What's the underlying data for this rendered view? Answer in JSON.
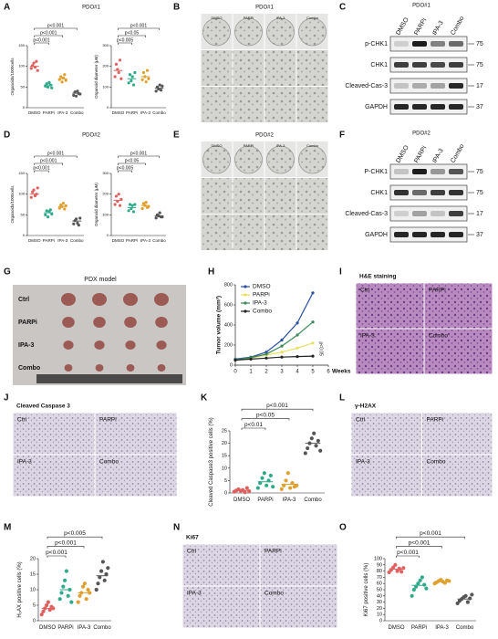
{
  "panel_letters": [
    "A",
    "B",
    "C",
    "D",
    "E",
    "F",
    "G",
    "H",
    "I",
    "J",
    "K",
    "L",
    "M",
    "N",
    "O"
  ],
  "panel_titles": {
    "A": "PDO#1",
    "D": "PDO#2"
  },
  "organoid_images": [
    {
      "title": "PDO#1",
      "columns": [
        "DMSO",
        "PARPi",
        "IPA-3",
        "Combo"
      ]
    },
    {
      "title": "PDO#2",
      "columns": [
        "DMSO",
        "PARPi",
        "IPA-3",
        "Combo"
      ]
    }
  ],
  "blots": [
    {
      "title": "PDO#1",
      "lanes": [
        "DMSO",
        "PARPi",
        "IPA-3",
        "Combo"
      ],
      "rows": [
        {
          "label": "p-CHK1",
          "mw": "75"
        },
        {
          "label": "CHK1",
          "mw": "75"
        },
        {
          "label": "Cleaved-Cas-3",
          "mw": "17"
        },
        {
          "label": "GAPDH",
          "mw": "37"
        }
      ]
    },
    {
      "title": "PDO#2",
      "lanes": [
        "DMSO",
        "PARPi",
        "IPA-3",
        "Combo"
      ],
      "rows": [
        {
          "label": "P-CHK1",
          "mw": "75"
        },
        {
          "label": "CHK1",
          "mw": "75"
        },
        {
          "label": "Cleaved-Cas-3",
          "mw": "17"
        },
        {
          "label": "GAPDH",
          "mw": "37"
        }
      ]
    }
  ],
  "pdx": {
    "title": "PDX model",
    "rows": [
      "Ctrl",
      "PARPi",
      "IPA-3",
      "Combo"
    ]
  },
  "stainings": [
    {
      "title": "H&E staining",
      "labels": [
        "Ctrl",
        "PARPi",
        "IPA-3",
        "Combo"
      ]
    },
    {
      "title": "Cleaved Caspase 3",
      "labels": [
        "Ctrl",
        "PARPi",
        "IPA-3",
        "Combo"
      ]
    },
    {
      "title": "γ-H2AX",
      "labels": [
        "Ctrl",
        "PARPi",
        "IPA-3",
        "Combo"
      ]
    },
    {
      "title": "Ki67",
      "labels": [
        "Ctrl",
        "PARPi",
        "IPA-3",
        "Combo"
      ]
    }
  ],
  "chart_data": [
    {
      "type": "dot",
      "ylabel": "Organoids/1000cells",
      "categories": [
        "DMSO",
        "PARPi",
        "IPA-3",
        "Combo"
      ],
      "colors": [
        "#e06060",
        "#2eaa8a",
        "#e0a030",
        "#555555"
      ],
      "values": [
        [
          95,
          102,
          108,
          98,
          112,
          90
        ],
        [
          52,
          58,
          50,
          61,
          55,
          48
        ],
        [
          68,
          75,
          62,
          72,
          80,
          66
        ],
        [
          30,
          38,
          28,
          40,
          34,
          33
        ]
      ],
      "means": [
        100,
        55,
        70,
        35
      ],
      "ylim": [
        0,
        150
      ],
      "yticks": [
        0,
        50,
        100,
        150
      ],
      "annotations": [
        "p<0.001",
        "p<0.001",
        "p<0.001"
      ]
    },
    {
      "type": "dot",
      "ylabel": "Organoid diameter (μM)",
      "categories": [
        "DMSO",
        "PARPi",
        "IPA-3",
        "Combo"
      ],
      "colors": [
        "#e06060",
        "#2eaa8a",
        "#e0a030",
        "#555555"
      ],
      "values": [
        [
          150,
          210,
          185,
          170,
          230,
          140
        ],
        [
          120,
          160,
          130,
          150,
          110,
          170
        ],
        [
          135,
          170,
          150,
          125,
          180,
          140
        ],
        [
          80,
          100,
          90,
          110,
          85,
          105
        ]
      ],
      "means": [
        180,
        140,
        150,
        95
      ],
      "ylim": [
        0,
        300
      ],
      "yticks": [
        0,
        100,
        200,
        300
      ],
      "annotations": [
        "p<0.005",
        "p<0.05",
        "p<0.001"
      ]
    },
    {
      "type": "dot",
      "ylabel": "Organoids/1000cells",
      "categories": [
        "DMSO",
        "PARPi",
        "IPA-3",
        "Combo"
      ],
      "colors": [
        "#e06060",
        "#2eaa8a",
        "#e0a030",
        "#555555"
      ],
      "values": [
        [
          92,
          105,
          110,
          96,
          100,
          115
        ],
        [
          50,
          60,
          45,
          58,
          62,
          52
        ],
        [
          66,
          74,
          70,
          78,
          64,
          72
        ],
        [
          28,
          36,
          40,
          30,
          25,
          42
        ]
      ],
      "means": [
        100,
        55,
        70,
        35
      ],
      "ylim": [
        0,
        150
      ],
      "yticks": [
        0,
        50,
        100,
        150
      ],
      "annotations": [
        "p<0.001",
        "p<0.001",
        "p<0.001"
      ]
    },
    {
      "type": "dot",
      "ylabel": "Organoid diameter (μM)",
      "categories": [
        "DMSO",
        "PARPi",
        "IPA-3",
        "Combo"
      ],
      "colors": [
        "#e06060",
        "#2eaa8a",
        "#e0a030",
        "#555555"
      ],
      "values": [
        [
          150,
          190,
          165,
          200,
          145,
          175
        ],
        [
          120,
          150,
          130,
          145,
          115,
          150
        ],
        [
          130,
          155,
          145,
          160,
          135,
          140
        ],
        [
          85,
          100,
          95,
          110,
          90,
          90
        ]
      ],
      "means": [
        170,
        135,
        145,
        95
      ],
      "ylim": [
        0,
        300
      ],
      "yticks": [
        0,
        100,
        200,
        300
      ],
      "annotations": [
        "p<0.005",
        "p<0.05",
        "p<0.001"
      ]
    },
    {
      "type": "line",
      "ylabel": "Tumor volume (mm³)",
      "xlabel": "Weeks",
      "x": [
        0,
        1,
        2,
        3,
        4,
        5
      ],
      "xlim": [
        0,
        6
      ],
      "xticks": [
        0,
        1,
        2,
        3,
        4,
        5,
        6
      ],
      "ylim": [
        0,
        800
      ],
      "yticks": [
        0,
        200,
        400,
        600,
        800
      ],
      "legend": "top-left",
      "series": [
        {
          "name": "DMSO",
          "color": "#2a4fa0",
          "values": [
            60,
            80,
            130,
            250,
            420,
            720
          ]
        },
        {
          "name": "PARPi",
          "color": "#e8e060",
          "values": [
            55,
            70,
            100,
            130,
            170,
            220
          ]
        },
        {
          "name": "IPA-3",
          "color": "#3a8a5a",
          "values": [
            55,
            75,
            110,
            190,
            300,
            430
          ]
        },
        {
          "name": "Combo",
          "color": "#222222",
          "values": [
            50,
            60,
            70,
            80,
            85,
            90
          ]
        }
      ],
      "annotations": [
        "p<0.05"
      ]
    },
    {
      "type": "dot",
      "ylabel": "Cleaved Caspase3 positive cells (%)",
      "categories": [
        "DMSO",
        "PARPi",
        "IPA-3",
        "Combo"
      ],
      "colors": [
        "#e06060",
        "#2eaa8a",
        "#e0a030",
        "#555555"
      ],
      "values": [
        [
          0.5,
          1,
          1.5,
          0.8,
          1.2,
          0.3,
          2,
          0.7
        ],
        [
          2,
          4,
          6,
          8,
          3,
          5,
          7,
          2.5
        ],
        [
          1.5,
          3,
          5,
          8,
          2,
          4,
          2.5,
          3
        ],
        [
          16,
          18,
          20,
          22,
          24,
          19,
          21,
          17
        ]
      ],
      "means": [
        1,
        4.5,
        3.5,
        20
      ],
      "ylim": [
        0,
        25
      ],
      "yticks": [
        0,
        5,
        10,
        15,
        20,
        25
      ],
      "annotations": [
        "p<0.01",
        "p<0.05",
        "p<0.001"
      ]
    },
    {
      "type": "dot",
      "ylabel": "H₂AX positive cells (%)",
      "categories": [
        "DMSO",
        "PARPi",
        "IPA-3",
        "Combo"
      ],
      "colors": [
        "#e06060",
        "#2eaa8a",
        "#e0a030",
        "#555555"
      ],
      "values": [
        [
          2,
          3,
          4,
          5,
          6,
          3.5,
          4.5,
          4
        ],
        [
          7,
          9,
          11,
          13,
          16,
          8,
          10,
          6
        ],
        [
          6,
          8,
          9,
          11,
          12,
          7,
          10,
          9
        ],
        [
          10,
          12,
          14,
          16,
          19,
          13,
          15,
          17
        ]
      ],
      "means": [
        4,
        10,
        9,
        14.5
      ],
      "ylim": [
        0,
        20
      ],
      "yticks": [
        0,
        5,
        10,
        15,
        20
      ],
      "annotations": [
        "p<0.001",
        "p<0.001",
        "p<0.005"
      ]
    },
    {
      "type": "dot",
      "ylabel": "Ki67 positive cells (%)",
      "categories": [
        "DMSO",
        "PARPi",
        "IPA-3",
        "Combo"
      ],
      "colors": [
        "#e06060",
        "#2eaa8a",
        "#e0a030",
        "#555555"
      ],
      "values": [
        [
          78,
          82,
          86,
          90,
          80,
          84,
          79,
          85
        ],
        [
          40,
          50,
          55,
          60,
          65,
          70,
          58,
          52
        ],
        [
          60,
          62,
          64,
          66,
          63,
          61,
          65,
          64
        ],
        [
          28,
          32,
          35,
          38,
          40,
          30,
          36,
          42
        ]
      ],
      "means": [
        83,
        57,
        63,
        35
      ],
      "ylim": [
        0,
        100
      ],
      "yticks": [
        0,
        10,
        20,
        30,
        40,
        50,
        60,
        70,
        80,
        90,
        100
      ],
      "annotations": [
        "p<0.001",
        "p<0.001",
        "p<0.001"
      ]
    }
  ]
}
